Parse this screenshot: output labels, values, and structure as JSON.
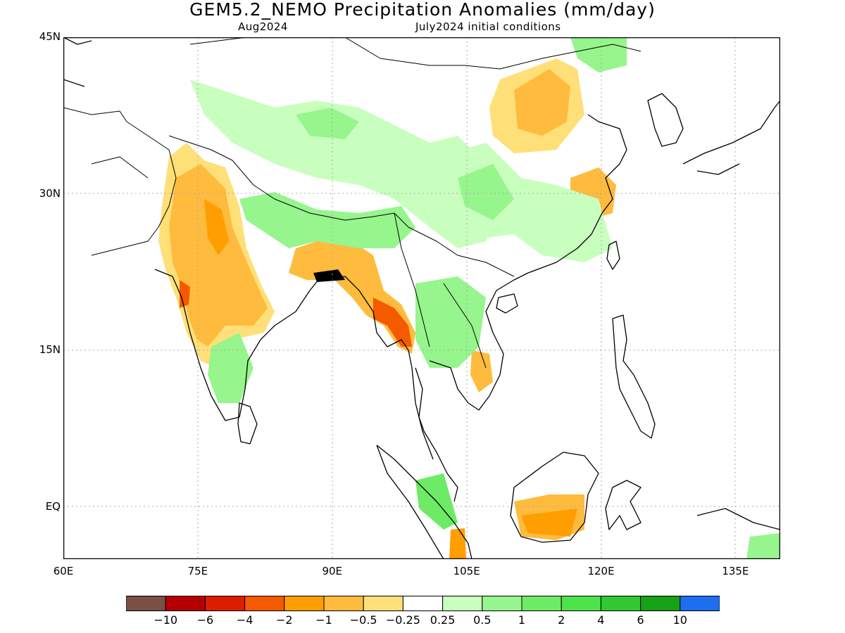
{
  "title": "GEM5.2_NEMO Precipitation Anomalies (mm/day)",
  "subtitle_left": "Aug2024",
  "subtitle_right": "July2024 initial conditions",
  "axes": {
    "lat_ticks": [
      {
        "value": 45,
        "label": "45N"
      },
      {
        "value": 30,
        "label": "30N"
      },
      {
        "value": 15,
        "label": "15N"
      },
      {
        "value": 0,
        "label": "EQ"
      }
    ],
    "lon_ticks": [
      {
        "value": 60,
        "label": "60E"
      },
      {
        "value": 75,
        "label": "75E"
      },
      {
        "value": 90,
        "label": "90E"
      },
      {
        "value": 105,
        "label": "105E"
      },
      {
        "value": 120,
        "label": "120E"
      },
      {
        "value": 135,
        "label": "135E"
      }
    ],
    "lon_range": [
      60,
      140
    ],
    "lat_range": [
      -5,
      45
    ],
    "grid": "dotted"
  },
  "colorbar": {
    "colors": [
      "#7b4f44",
      "#b40000",
      "#dc1e00",
      "#f55a00",
      "#ff9e00",
      "#ffbb3d",
      "#ffe078",
      "#ffffff",
      "#c8ffbe",
      "#96f58c",
      "#6eeb64",
      "#4ce44a",
      "#32c832",
      "#17a117",
      "#1e6ef0"
    ],
    "labels": [
      "−10",
      "−6",
      "−4",
      "−2",
      "−1",
      "−0.5",
      "−0.25",
      "0.25",
      "0.5",
      "1",
      "2",
      "4",
      "6",
      "10"
    ]
  },
  "colors": {
    "coast": "#000000",
    "grid": "#aaaaaa"
  }
}
